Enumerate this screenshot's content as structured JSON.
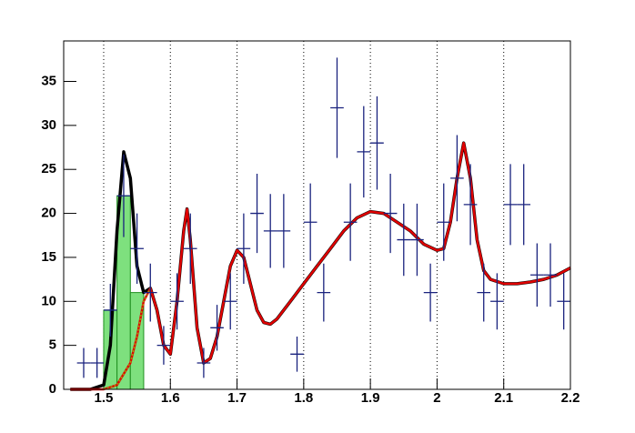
{
  "chart_data": {
    "type": "errorbar",
    "color": "#1a237e",
    "x": [
      1.47,
      1.49,
      1.51,
      1.53,
      1.55,
      1.57,
      1.59,
      1.61,
      1.63,
      1.65,
      1.67,
      1.69,
      1.71,
      1.73,
      1.75,
      1.77,
      1.79,
      1.81,
      1.83,
      1.85,
      1.87,
      1.89,
      1.91,
      1.93,
      1.95,
      1.97,
      1.99,
      2.01,
      2.03,
      2.05,
      2.07,
      2.09,
      2.11,
      2.13,
      2.15,
      2.17,
      2.19
    ],
    "values": [
      3,
      3,
      9,
      22,
      16,
      11,
      5,
      10,
      16,
      3,
      7,
      10,
      16,
      20,
      18,
      18,
      4,
      19,
      11,
      32,
      19,
      27,
      28,
      20,
      17,
      17,
      11,
      19,
      24,
      21,
      11,
      10,
      21,
      21,
      13,
      13,
      10
    ],
    "errors": [
      1.7,
      1.7,
      3,
      4.7,
      4,
      3.3,
      2.2,
      3.2,
      4,
      1.7,
      2.6,
      3.2,
      4,
      4.5,
      4.2,
      4.2,
      2,
      4.4,
      3.3,
      5.7,
      4.4,
      5.2,
      5.3,
      4.5,
      4.1,
      4.1,
      3.3,
      4.4,
      4.9,
      4.6,
      3.3,
      3.2,
      4.6,
      4.6,
      3.6,
      3.6,
      3.2
    ],
    "histogram": {
      "bins": [
        1.5,
        1.52,
        1.54,
        1.56
      ],
      "counts": [
        9,
        22,
        11
      ],
      "color": "#7ee07e",
      "edge_color": "#1f8f1f"
    },
    "lines": [
      {
        "color": "#000000",
        "style": "solid",
        "x": [
          1.45,
          1.48,
          1.5,
          1.51,
          1.52,
          1.53,
          1.54,
          1.55,
          1.56,
          1.57,
          1.58,
          1.59,
          1.6,
          1.61,
          1.62,
          1.625,
          1.63,
          1.64,
          1.65,
          1.66,
          1.67,
          1.68,
          1.69,
          1.7,
          1.71,
          1.72,
          1.73,
          1.74,
          1.75,
          1.76,
          1.78,
          1.8,
          1.82,
          1.84,
          1.86,
          1.88,
          1.9,
          1.92,
          1.94,
          1.96,
          1.98,
          2.0,
          2.01,
          2.02,
          2.03,
          2.04,
          2.05,
          2.06,
          2.07,
          2.08,
          2.1,
          2.12,
          2.14,
          2.16,
          2.18,
          2.2
        ],
        "values": [
          0,
          0,
          0.5,
          5,
          18,
          27,
          24,
          14,
          11,
          11.5,
          9,
          5,
          4,
          10,
          18,
          20.5,
          17,
          7,
          3,
          3.5,
          6,
          10,
          14,
          15.8,
          15,
          12,
          9,
          7.6,
          7.4,
          8,
          10,
          12,
          14,
          16,
          18,
          19.5,
          20.2,
          20,
          19,
          18,
          16.5,
          15.8,
          16,
          19,
          24,
          28,
          24,
          17,
          13.5,
          12.5,
          12,
          12,
          12.2,
          12.5,
          13,
          13.8
        ]
      },
      {
        "color": "#e00000",
        "style": "solid",
        "x": [
          1.45,
          1.5,
          1.52,
          1.54,
          1.55,
          1.56,
          1.57,
          1.58,
          1.59,
          1.6,
          1.61,
          1.62,
          1.625,
          1.63,
          1.64,
          1.65,
          1.66,
          1.67,
          1.68,
          1.69,
          1.7,
          1.71,
          1.72,
          1.73,
          1.74,
          1.75,
          1.76,
          1.78,
          1.8,
          1.82,
          1.84,
          1.86,
          1.88,
          1.9,
          1.92,
          1.94,
          1.96,
          1.98,
          2.0,
          2.01,
          2.02,
          2.03,
          2.04,
          2.05,
          2.06,
          2.07,
          2.08,
          2.1,
          2.12,
          2.14,
          2.16,
          2.18,
          2.2
        ],
        "values": [
          0,
          0,
          0.5,
          3,
          6,
          10,
          11.5,
          9,
          5,
          4,
          10,
          18,
          20.5,
          17,
          7,
          3,
          3.5,
          6,
          10,
          14,
          15.8,
          15,
          12,
          9,
          7.6,
          7.4,
          8,
          10,
          12,
          14,
          16,
          18,
          19.5,
          20.2,
          20,
          19,
          18,
          16.5,
          15.8,
          16,
          19,
          24,
          28,
          24,
          17,
          13.5,
          12.5,
          12,
          12,
          12.2,
          12.5,
          13,
          13.8
        ]
      },
      {
        "color": "#a0a000",
        "style": "dotted",
        "x": [
          1.5,
          1.52,
          1.54,
          1.55,
          1.56,
          1.57
        ],
        "values": [
          0,
          0.5,
          3,
          6,
          10,
          11.5
        ]
      }
    ],
    "xlim": [
      1.44,
      2.2
    ],
    "ylim": [
      0,
      39.6
    ],
    "xticks": [
      1.5,
      1.6,
      1.7,
      1.8,
      1.9,
      2,
      2.1,
      2.2
    ],
    "yticks": [
      0,
      5,
      10,
      15,
      20,
      25,
      30,
      35
    ],
    "grid": "x"
  }
}
